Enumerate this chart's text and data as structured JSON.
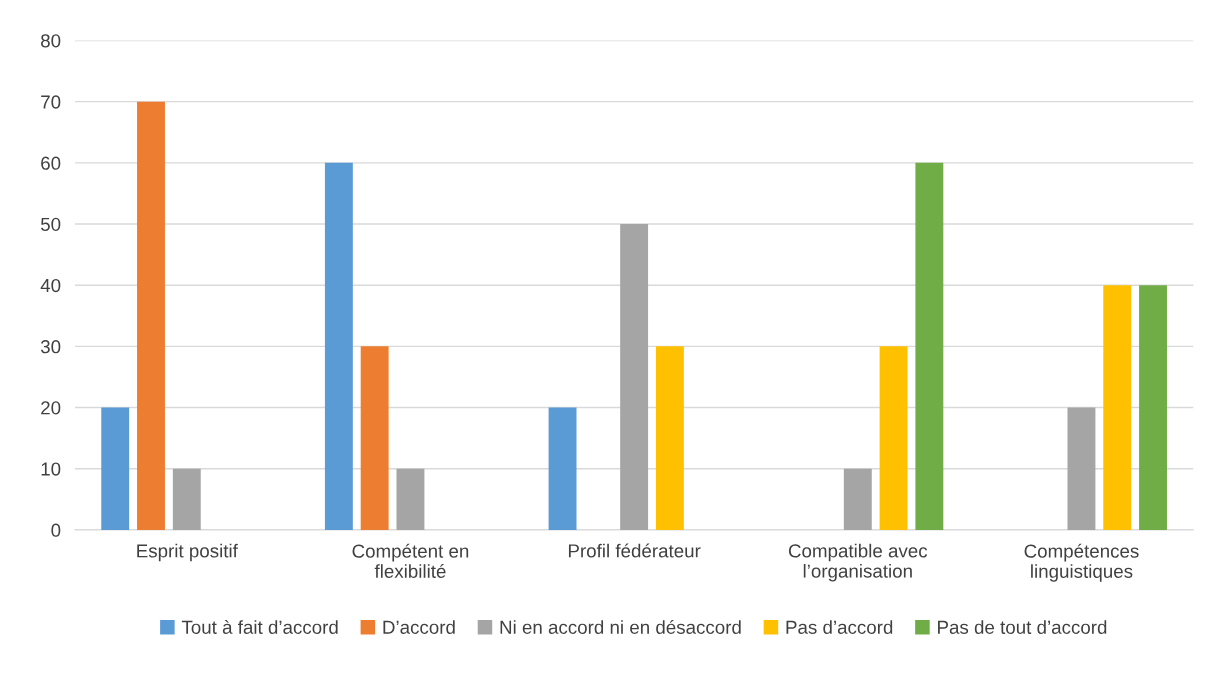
{
  "chart_data": {
    "type": "bar",
    "categories": [
      "Esprit positif",
      "Compétent en\nflexibilité",
      "Profil fédérateur",
      "Compatible avec\nl’organisation",
      "Compétences\nlinguistiques"
    ],
    "series": [
      {
        "name": "Tout à fait d’accord",
        "color": "#5b9bd5",
        "values": [
          20,
          60,
          20,
          0,
          0
        ]
      },
      {
        "name": "D’accord",
        "color": "#ed7d31",
        "values": [
          70,
          30,
          0,
          0,
          0
        ]
      },
      {
        "name": "Ni en accord ni en désaccord",
        "color": "#a5a5a5",
        "values": [
          10,
          10,
          50,
          10,
          20
        ]
      },
      {
        "name": "Pas d’accord",
        "color": "#ffc000",
        "values": [
          0,
          0,
          30,
          30,
          40
        ]
      },
      {
        "name": "Pas de tout d’accord",
        "color": "#70ad47",
        "values": [
          0,
          0,
          0,
          60,
          40
        ]
      }
    ],
    "ylim": [
      0,
      80
    ],
    "yticks": [
      0,
      10,
      20,
      30,
      40,
      50,
      60,
      70,
      80
    ],
    "grid": "y",
    "legend": "bottom"
  }
}
